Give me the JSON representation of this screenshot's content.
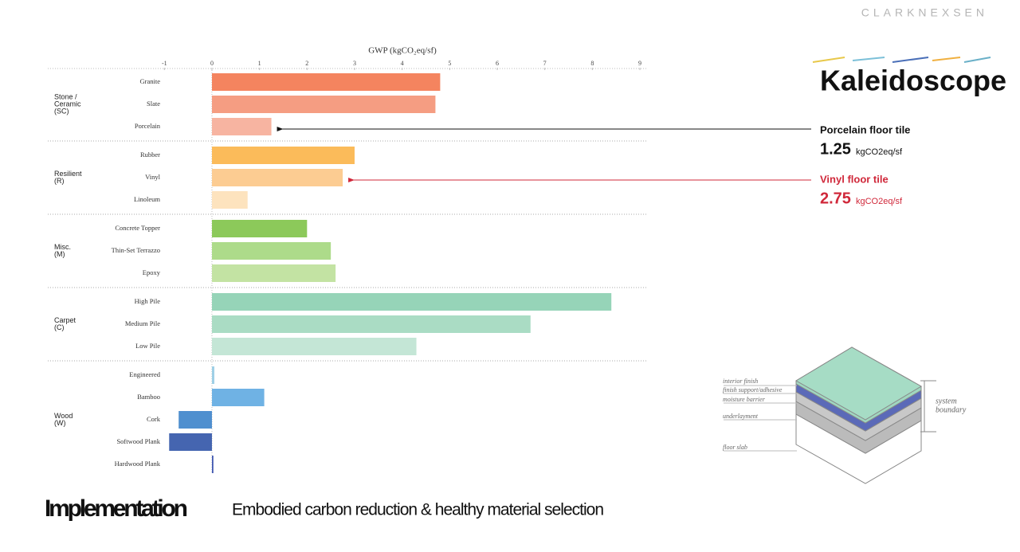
{
  "brand": "CLARKNEXSEN",
  "product": "Kaleidoscope",
  "chart_data": {
    "type": "bar",
    "orientation": "horizontal",
    "title": "GWP (kgCO₂eq/sf)",
    "xlim": [
      -1,
      9
    ],
    "xticks": [
      -1,
      0,
      1,
      2,
      3,
      4,
      5,
      6,
      7,
      8,
      9
    ],
    "groups": [
      {
        "name": [
          "Stone /",
          "Ceramic",
          "(SC)"
        ],
        "categories": [
          "Granite",
          "Slate",
          "Porcelain"
        ],
        "values": [
          4.8,
          4.7,
          1.25
        ],
        "colors": [
          "#f4845f",
          "#f59d82",
          "#f7b4a1"
        ]
      },
      {
        "name": [
          "Resilient",
          "(R)"
        ],
        "categories": [
          "Rubber",
          "Vinyl",
          "Linoleum"
        ],
        "values": [
          3.0,
          2.75,
          0.75
        ],
        "colors": [
          "#fbbb5a",
          "#fccc92",
          "#fde3be"
        ]
      },
      {
        "name": [
          "Misc.",
          "(M)"
        ],
        "categories": [
          "Concrete Topper",
          "Thin-Set Terrazzo",
          "Epoxy"
        ],
        "values": [
          2.0,
          2.5,
          2.6
        ],
        "colors": [
          "#8cc95a",
          "#addb8a",
          "#c3e3a3"
        ]
      },
      {
        "name": [
          "Carpet",
          "(C)"
        ],
        "categories": [
          "High Pile",
          "Medium Pile",
          "Low Pile"
        ],
        "values": [
          8.4,
          6.7,
          4.3
        ],
        "colors": [
          "#96d4b8",
          "#aadcc4",
          "#c4e6d6"
        ]
      },
      {
        "name": [
          "Wood",
          "(W)"
        ],
        "categories": [
          "Engineered",
          "Bamboo",
          "Cork",
          "Softwood Plank",
          "Hardwood Plank"
        ],
        "values": [
          0.05,
          1.1,
          -0.7,
          -0.9,
          0.03
        ],
        "colors": [
          "#9ecfe6",
          "#6fb2e4",
          "#4f8fcf",
          "#4565b0",
          "#3f55b0"
        ]
      }
    ]
  },
  "annotations": [
    {
      "label": "Porcelain floor tile",
      "value": "1.25",
      "unit": "kgCO2eq/sf"
    },
    {
      "label": "Vinyl floor tile",
      "value": "2.75",
      "unit": "kgCO2eq/sf"
    }
  ],
  "diagram": {
    "labels": [
      "interior finish",
      "finish support/adhesive",
      "moisture barrier",
      "underlayment",
      "floor slab"
    ],
    "boundary": [
      "system",
      "boundary"
    ]
  },
  "footer": {
    "title": "Implementation",
    "subtitle": "Embodied carbon reduction  &  healthy material selection"
  }
}
